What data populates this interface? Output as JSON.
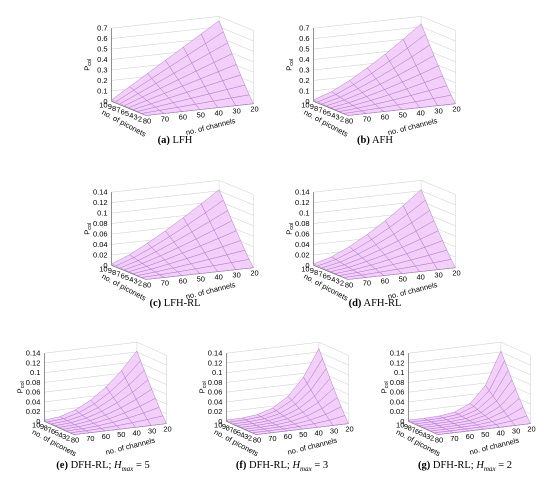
{
  "colors": {
    "surface_fill": "#f0c8f8",
    "mesh_line": "#b070d0",
    "box_line": "#555555",
    "grid_line": "#cccccc"
  },
  "chart_data": [
    {
      "type": "surface",
      "letter": "(a)",
      "title": "LFH",
      "zlabel": "P_col",
      "xlabel": "no. of channels",
      "ylabel": "no. of piconets",
      "zticks": [
        "0",
        "0.1",
        "0.2",
        "0.3",
        "0.4",
        "0.5",
        "0.6",
        "0.7"
      ],
      "zlim": [
        0,
        0.7
      ],
      "channels": [
        20,
        30,
        40,
        50,
        60,
        70,
        80
      ],
      "piconets": [
        2,
        3,
        4,
        5,
        6,
        7,
        8,
        9,
        10
      ],
      "xticks": [
        "20",
        "30",
        "40",
        "50",
        "60",
        "70",
        "80"
      ],
      "yticks": [
        "2",
        "3",
        "4",
        "5",
        "6",
        "7",
        "8",
        "9",
        "10"
      ],
      "z_max": 0.7,
      "shape": 1.0
    },
    {
      "type": "surface",
      "letter": "(b)",
      "title": "AFH",
      "zlabel": "P_col",
      "xlabel": "no. of channels",
      "ylabel": "no. of piconets",
      "zticks": [
        "0",
        "0.1",
        "0.2",
        "0.3",
        "0.4",
        "0.5",
        "0.6",
        "0.7"
      ],
      "zlim": [
        0,
        0.7
      ],
      "channels": [
        20,
        30,
        40,
        50,
        60,
        70,
        80
      ],
      "piconets": [
        2,
        3,
        4,
        5,
        6,
        7,
        8,
        9,
        10
      ],
      "xticks": [
        "20",
        "30",
        "40",
        "50",
        "60",
        "70",
        "80"
      ],
      "yticks": [
        "2",
        "3",
        "4",
        "5",
        "6",
        "7",
        "8",
        "9",
        "10"
      ],
      "z_max": 0.67,
      "shape": 1.3
    },
    {
      "type": "surface",
      "letter": "(c)",
      "title": "LFH-RL",
      "zlabel": "P_col",
      "xlabel": "no. of channels",
      "ylabel": "no. of piconets",
      "zticks": [
        "0",
        "0.02",
        "0.04",
        "0.06",
        "0.08",
        "0.1",
        "0.12",
        "0.14"
      ],
      "zlim": [
        0,
        0.14
      ],
      "channels": [
        20,
        30,
        40,
        50,
        60,
        70,
        80
      ],
      "piconets": [
        2,
        3,
        4,
        5,
        6,
        7,
        8,
        9,
        10
      ],
      "xticks": [
        "20",
        "30",
        "40",
        "50",
        "60",
        "70",
        "80"
      ],
      "yticks": [
        "2",
        "3",
        "4",
        "5",
        "6",
        "7",
        "8",
        "9",
        "10"
      ],
      "z_max": 0.13,
      "shape": 1.2
    },
    {
      "type": "surface",
      "letter": "(d)",
      "title": "AFH-RL",
      "zlabel": "P_col",
      "xlabel": "no. of channels",
      "ylabel": "no. of piconets",
      "zticks": [
        "0",
        "0.02",
        "0.04",
        "0.06",
        "0.08",
        "0.1",
        "0.12",
        "0.14"
      ],
      "zlim": [
        0,
        0.14
      ],
      "channels": [
        20,
        30,
        40,
        50,
        60,
        70,
        80
      ],
      "piconets": [
        2,
        3,
        4,
        5,
        6,
        7,
        8,
        9,
        10
      ],
      "xticks": [
        "20",
        "30",
        "40",
        "50",
        "60",
        "70",
        "80"
      ],
      "yticks": [
        "2",
        "3",
        "4",
        "5",
        "6",
        "7",
        "8",
        "9",
        "10"
      ],
      "z_max": 0.13,
      "shape": 1.4
    },
    {
      "type": "surface",
      "letter": "(e)",
      "title": "DFH-RL; ",
      "hsym": "H",
      "hsub": "max",
      "hval": " = 5",
      "zlabel": "P_col",
      "xlabel": "no. of channels",
      "ylabel": "no. of piconets",
      "zticks": [
        "0",
        "0.02",
        "0.04",
        "0.06",
        "0.08",
        "0.1",
        "0.12",
        "0.14"
      ],
      "zlim": [
        0,
        0.14
      ],
      "channels": [
        20,
        30,
        40,
        50,
        60,
        70,
        80
      ],
      "piconets": [
        2,
        3,
        4,
        5,
        6,
        7,
        8,
        9,
        10
      ],
      "xticks": [
        "20",
        "30",
        "40",
        "50",
        "60",
        "70",
        "80"
      ],
      "yticks": [
        "2",
        "3",
        "4",
        "5",
        "6",
        "7",
        "8",
        "9",
        "10"
      ],
      "z_max": 0.13,
      "shape": 2.0
    },
    {
      "type": "surface",
      "letter": "(f)",
      "title": "DFH-RL; ",
      "hsym": "H",
      "hsub": "max",
      "hval": " = 3",
      "zlabel": "P_col",
      "xlabel": "no. of channels",
      "ylabel": "no. of piconets",
      "zticks": [
        "0",
        "0.02",
        "0.04",
        "0.06",
        "0.08",
        "0.1",
        "0.12",
        "0.14"
      ],
      "zlim": [
        0,
        0.14
      ],
      "channels": [
        20,
        30,
        40,
        50,
        60,
        70,
        80
      ],
      "piconets": [
        2,
        3,
        4,
        5,
        6,
        7,
        8,
        9,
        10
      ],
      "xticks": [
        "20",
        "30",
        "40",
        "50",
        "60",
        "70",
        "80"
      ],
      "yticks": [
        "2",
        "3",
        "4",
        "5",
        "6",
        "7",
        "8",
        "9",
        "10"
      ],
      "z_max": 0.135,
      "shape": 3.2
    },
    {
      "type": "surface",
      "letter": "(g)",
      "title": "DFH-RL; ",
      "hsym": "H",
      "hsub": "max",
      "hval": " = 2",
      "zlabel": "P_col",
      "xlabel": "no. of channels",
      "ylabel": "no. of piconets",
      "zticks": [
        "0",
        "0.02",
        "0.04",
        "0.06",
        "0.08",
        "0.1",
        "0.12",
        "0.14"
      ],
      "zlim": [
        0,
        0.14
      ],
      "channels": [
        20,
        30,
        40,
        50,
        60,
        70,
        80
      ],
      "piconets": [
        2,
        3,
        4,
        5,
        6,
        7,
        8,
        9,
        10
      ],
      "xticks": [
        "20",
        "30",
        "40",
        "50",
        "60",
        "70",
        "80"
      ],
      "yticks": [
        "2",
        "3",
        "4",
        "5",
        "6",
        "7",
        "8",
        "9",
        "10"
      ],
      "z_max": 0.13,
      "shape": 4.5
    }
  ]
}
